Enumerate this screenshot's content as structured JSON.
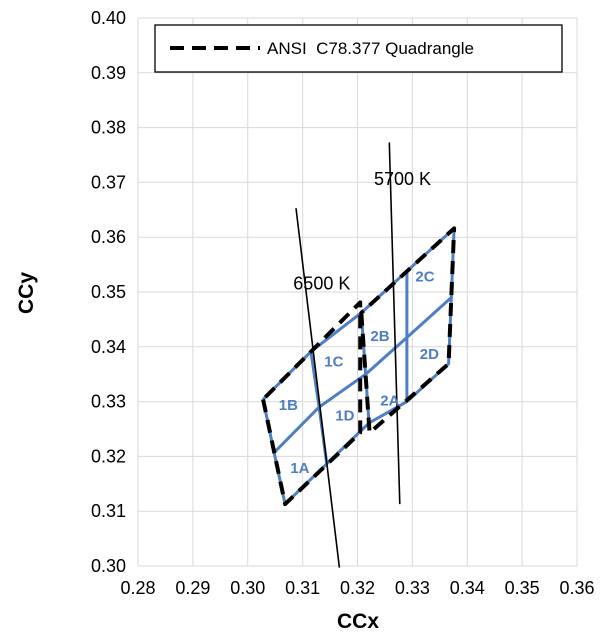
{
  "chart_data": {
    "type": "line",
    "xlabel": "CCx",
    "ylabel": "CCy",
    "xlim": [
      0.28,
      0.36
    ],
    "ylim": [
      0.3,
      0.4
    ],
    "x_ticks": [
      "0.28",
      "0.29",
      "0.30",
      "0.31",
      "0.32",
      "0.33",
      "0.34",
      "0.35",
      "0.36"
    ],
    "y_ticks": [
      "0.30",
      "0.31",
      "0.32",
      "0.33",
      "0.34",
      "0.35",
      "0.36",
      "0.37",
      "0.38",
      "0.39",
      "0.40"
    ],
    "grid": true,
    "legend": {
      "placement": "top-right",
      "entries": [
        {
          "label": "ANSI  C78.377 Quadrangle",
          "style": "dashed",
          "color": "#000000"
        }
      ]
    },
    "colors": {
      "quadrangle": "#000000",
      "bins": "#4f7ec2",
      "cct_lines": "#000000"
    },
    "quadrangles": [
      {
        "name": "6500 K",
        "points": [
          [
            0.3028,
            0.3304
          ],
          [
            0.3068,
            0.3113
          ],
          [
            0.3205,
            0.3243
          ],
          [
            0.3205,
            0.3481
          ]
        ]
      },
      {
        "name": "5700 K",
        "points": [
          [
            0.3207,
            0.3462
          ],
          [
            0.3222,
            0.3243
          ],
          [
            0.3366,
            0.3369
          ],
          [
            0.3376,
            0.3616
          ]
        ]
      }
    ],
    "bin_polylines": [
      [
        [
          0.3028,
          0.3304
        ],
        [
          0.3048,
          0.3207
        ],
        [
          0.3068,
          0.3113
        ],
        [
          0.3221,
          0.3261
        ],
        [
          0.3207,
          0.3462
        ],
        [
          0.3115,
          0.3391
        ],
        [
          0.3028,
          0.3304
        ]
      ],
      [
        [
          0.3048,
          0.3207
        ],
        [
          0.313,
          0.329
        ],
        [
          0.3215,
          0.335
        ]
      ],
      [
        [
          0.3115,
          0.3391
        ],
        [
          0.313,
          0.329
        ],
        [
          0.3144,
          0.3186
        ]
      ],
      [
        [
          0.3207,
          0.3462
        ],
        [
          0.329,
          0.3538
        ],
        [
          0.3376,
          0.3616
        ],
        [
          0.3371,
          0.349
        ],
        [
          0.3366,
          0.3369
        ],
        [
          0.329,
          0.33
        ],
        [
          0.3221,
          0.3261
        ]
      ],
      [
        [
          0.3215,
          0.335
        ],
        [
          0.329,
          0.3417
        ],
        [
          0.3371,
          0.349
        ]
      ],
      [
        [
          0.329,
          0.3538
        ],
        [
          0.329,
          0.3417
        ],
        [
          0.329,
          0.33
        ]
      ]
    ],
    "cct_lines": [
      {
        "label": "6500 K",
        "points": [
          [
            0.3088,
            0.3653
          ],
          [
            0.3167,
            0.2997
          ]
        ],
        "label_at": [
          0.3135,
          0.3505
        ]
      },
      {
        "label": "5700 K",
        "points": [
          [
            0.3258,
            0.3773
          ],
          [
            0.3277,
            0.3113
          ]
        ],
        "label_at": [
          0.3282,
          0.3695
        ]
      }
    ],
    "bin_labels": [
      {
        "label": "1A",
        "at": [
          0.3095,
          0.3178
        ]
      },
      {
        "label": "1B",
        "at": [
          0.3074,
          0.3293
        ]
      },
      {
        "label": "1C",
        "at": [
          0.3157,
          0.3372
        ]
      },
      {
        "label": "1D",
        "at": [
          0.3177,
          0.3274
        ]
      },
      {
        "label": "2A",
        "at": [
          0.3259,
          0.3301
        ]
      },
      {
        "label": "2B",
        "at": [
          0.3241,
          0.3419
        ]
      },
      {
        "label": "2C",
        "at": [
          0.3323,
          0.3527
        ]
      },
      {
        "label": "2D",
        "at": [
          0.3331,
          0.3386
        ]
      }
    ]
  }
}
